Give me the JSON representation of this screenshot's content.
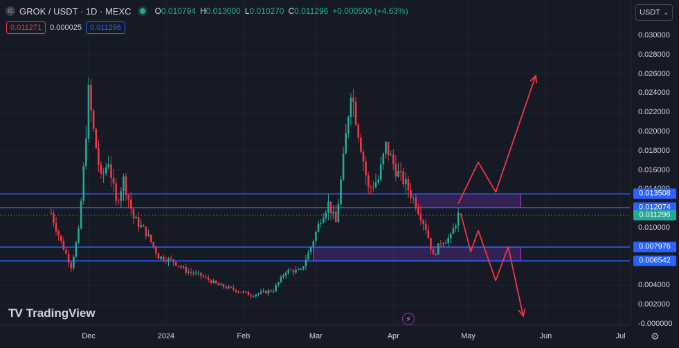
{
  "header": {
    "symbol_icon": "G",
    "symbol": "GROK / USDT · 1D · MEXC",
    "ohlc": {
      "o_label": "O",
      "o_value": "0.010794",
      "h_label": "H",
      "h_value": "0.013000",
      "l_label": "L",
      "l_value": "0.010270",
      "c_label": "C",
      "c_value": "0.011296",
      "change": "+0.000500 (+4.63%)"
    }
  },
  "bid_ask": {
    "bid": "0.011271",
    "spread": "0.000025",
    "ask": "0.011296"
  },
  "currency_select": {
    "value": "USDT"
  },
  "logo_text": "TradingView",
  "colors": {
    "up": "#22ab94",
    "down": "#f23645",
    "level_line": "#2962ff",
    "zone_fill": "#4a2a7a",
    "zone_border": "#9c27b0",
    "arrow": "#f23645",
    "background": "#161a25"
  },
  "chart_data": {
    "type": "candlestick",
    "title": "",
    "ylim": [
      0,
      0.03
    ],
    "y_ticks": [
      "0.030000",
      "0.028000",
      "0.026000",
      "0.024000",
      "0.022000",
      "0.020000",
      "0.018000",
      "0.016000",
      "0.014000",
      "0.010000",
      "0.004000",
      "0.002000",
      "-0.000000"
    ],
    "x_tick_labels": [
      "Dec",
      "2024",
      "Feb",
      "Mar",
      "Apr",
      "May",
      "Jun",
      "Jul"
    ],
    "levels": [
      {
        "price": 0.013508,
        "label": "0.013508"
      },
      {
        "price": 0.012074,
        "label": "0.012074"
      },
      {
        "price": 0.007976,
        "label": "0.007976"
      },
      {
        "price": 0.006542,
        "label": "0.006542"
      }
    ],
    "current_price": {
      "price": 0.011296,
      "label": "0.011296"
    },
    "zones": [
      {
        "from": "2024-04-10",
        "to": "2024-05-22",
        "top": 0.013508,
        "bottom": 0.012074
      },
      {
        "from": "2024-02-29",
        "to": "2024-05-22",
        "top": 0.007976,
        "bottom": 0.006542
      }
    ],
    "projection_up": [
      {
        "date": "2024-04-27",
        "price": 0.0125
      },
      {
        "date": "2024-05-05",
        "price": 0.0168
      },
      {
        "date": "2024-05-12",
        "price": 0.0137
      },
      {
        "date": "2024-05-28",
        "price": 0.0258
      }
    ],
    "projection_down": [
      {
        "date": "2024-04-28",
        "price": 0.0115
      },
      {
        "date": "2024-05-02",
        "price": 0.0075
      },
      {
        "date": "2024-05-05",
        "price": 0.0097
      },
      {
        "date": "2024-05-12",
        "price": 0.0045
      },
      {
        "date": "2024-05-17",
        "price": 0.008
      },
      {
        "date": "2024-05-23",
        "price": 0.0008
      }
    ],
    "price_path": [
      {
        "date": "2023-11-16",
        "price": 0.0115
      },
      {
        "date": "2023-11-20",
        "price": 0.0085
      },
      {
        "date": "2023-11-24",
        "price": 0.006
      },
      {
        "date": "2023-11-27",
        "price": 0.0095
      },
      {
        "date": "2023-11-29",
        "price": 0.016
      },
      {
        "date": "2023-12-01",
        "price": 0.024
      },
      {
        "date": "2023-12-03",
        "price": 0.02
      },
      {
        "date": "2023-12-06",
        "price": 0.015
      },
      {
        "date": "2023-12-09",
        "price": 0.017
      },
      {
        "date": "2023-12-12",
        "price": 0.0125
      },
      {
        "date": "2023-12-15",
        "price": 0.015
      },
      {
        "date": "2023-12-19",
        "price": 0.011
      },
      {
        "date": "2023-12-24",
        "price": 0.0095
      },
      {
        "date": "2023-12-29",
        "price": 0.007
      },
      {
        "date": "2024-01-04",
        "price": 0.0065
      },
      {
        "date": "2024-01-09",
        "price": 0.0055
      },
      {
        "date": "2024-01-15",
        "price": 0.005
      },
      {
        "date": "2024-01-22",
        "price": 0.004
      },
      {
        "date": "2024-01-29",
        "price": 0.0035
      },
      {
        "date": "2024-02-04",
        "price": 0.003
      },
      {
        "date": "2024-02-08",
        "price": 0.0032
      },
      {
        "date": "2024-02-13",
        "price": 0.0035
      },
      {
        "date": "2024-02-18",
        "price": 0.0055
      },
      {
        "date": "2024-02-24",
        "price": 0.0055
      },
      {
        "date": "2024-02-28",
        "price": 0.008
      },
      {
        "date": "2024-03-03",
        "price": 0.011
      },
      {
        "date": "2024-03-06",
        "price": 0.0125
      },
      {
        "date": "2024-03-09",
        "price": 0.0105
      },
      {
        "date": "2024-03-12",
        "price": 0.017
      },
      {
        "date": "2024-03-15",
        "price": 0.0245
      },
      {
        "date": "2024-03-18",
        "price": 0.02
      },
      {
        "date": "2024-03-22",
        "price": 0.014
      },
      {
        "date": "2024-03-26",
        "price": 0.015
      },
      {
        "date": "2024-03-29",
        "price": 0.0185
      },
      {
        "date": "2024-04-02",
        "price": 0.016
      },
      {
        "date": "2024-04-06",
        "price": 0.0145
      },
      {
        "date": "2024-04-10",
        "price": 0.0125
      },
      {
        "date": "2024-04-14",
        "price": 0.01
      },
      {
        "date": "2024-04-17",
        "price": 0.007
      },
      {
        "date": "2024-04-20",
        "price": 0.0085
      },
      {
        "date": "2024-04-24",
        "price": 0.009
      },
      {
        "date": "2024-04-27",
        "price": 0.0113
      }
    ]
  }
}
